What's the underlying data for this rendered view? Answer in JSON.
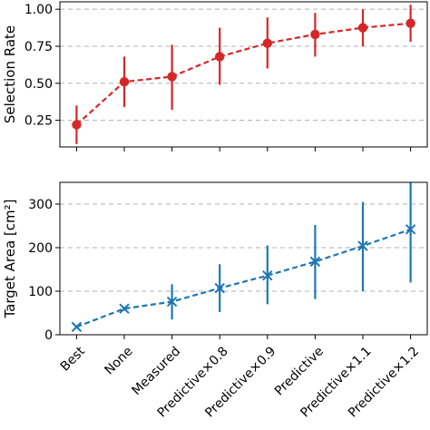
{
  "chart_data": [
    {
      "type": "line",
      "categories": [
        "Best",
        "None",
        "Measured",
        "Predictive×0.8",
        "Predictive×0.9",
        "Predictive",
        "Predictive×1.1",
        "Predictive×1.2"
      ],
      "ylabel": "Selection Rate",
      "ylim": [
        0.07,
        1.05
      ],
      "yticks": [
        "0.25",
        "0.50",
        "0.75",
        "1.00"
      ],
      "grid": "horizontal dashed",
      "marker": "circle",
      "color": "#d62728",
      "series": [
        {
          "values": [
            0.22,
            0.51,
            0.545,
            0.68,
            0.77,
            0.83,
            0.875,
            0.905
          ],
          "err_low": [
            0.09,
            0.34,
            0.32,
            0.49,
            0.6,
            0.68,
            0.75,
            0.78
          ],
          "err_high": [
            0.35,
            0.68,
            0.76,
            0.875,
            0.945,
            0.975,
            1.0,
            1.03
          ]
        }
      ]
    },
    {
      "type": "line",
      "categories": [
        "Best",
        "None",
        "Measured",
        "Predictive×0.8",
        "Predictive×0.9",
        "Predictive",
        "Predictive×1.1",
        "Predictive×1.2"
      ],
      "ylabel": "Target Area [cm²]",
      "ylim": [
        0,
        350
      ],
      "yticks": [
        "0",
        "100",
        "200",
        "300"
      ],
      "grid": "horizontal dashed",
      "marker": "x",
      "color": "#1f77b4",
      "series": [
        {
          "values": [
            18,
            60,
            76,
            107,
            136,
            168,
            204,
            242
          ],
          "err_low": [
            14,
            55,
            35,
            52,
            70,
            82,
            100,
            120
          ],
          "err_high": [
            22,
            64,
            116,
            162,
            205,
            252,
            305,
            350
          ]
        }
      ]
    }
  ]
}
